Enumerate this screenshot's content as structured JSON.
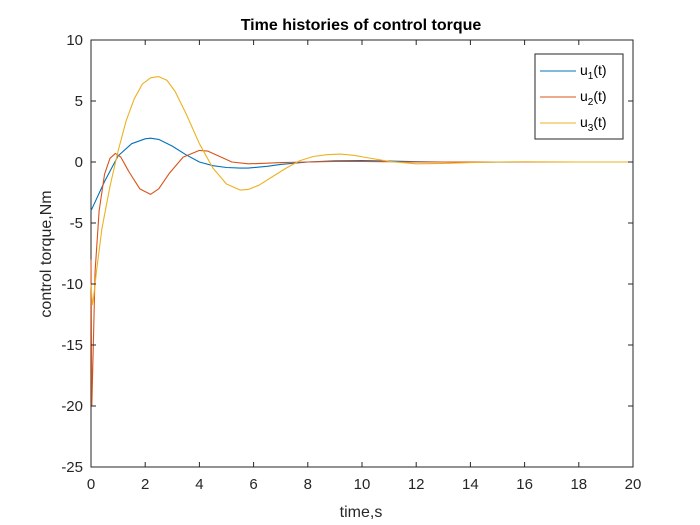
{
  "chart_data": {
    "type": "line",
    "title": "Time histories of control torque",
    "xlabel": "time,s",
    "ylabel": "control torque,Nm",
    "xlim": [
      0,
      20
    ],
    "ylim": [
      -25,
      10
    ],
    "xticks": [
      0,
      2,
      4,
      6,
      8,
      10,
      12,
      14,
      16,
      18,
      20
    ],
    "yticks": [
      -25,
      -20,
      -15,
      -10,
      -5,
      0,
      5,
      10
    ],
    "grid": false,
    "legend_position": "top-right",
    "series": [
      {
        "name": "u_1(t)",
        "label_base": "u",
        "label_sub": "1",
        "label_suffix": "(t)",
        "color": "#0072BD",
        "x": [
          0,
          0.5,
          1.0,
          1.5,
          2.0,
          2.2,
          2.5,
          3.0,
          3.5,
          4.0,
          4.5,
          5.0,
          5.5,
          5.8,
          6.5,
          7.0,
          7.5,
          8.0,
          9.0,
          10.0,
          11.0,
          12.0,
          13.0,
          14.0,
          15.0,
          16.0,
          18.0,
          20.0
        ],
        "y": [
          -4.0,
          -1.6,
          0.5,
          1.5,
          1.9,
          1.95,
          1.85,
          1.3,
          0.6,
          0.0,
          -0.3,
          -0.45,
          -0.5,
          -0.5,
          -0.35,
          -0.2,
          -0.1,
          0.0,
          0.1,
          0.12,
          0.08,
          0.03,
          0.0,
          -0.02,
          -0.01,
          0.0,
          0.0,
          0.0
        ]
      },
      {
        "name": "u_2(t)",
        "label_base": "u",
        "label_sub": "2",
        "label_suffix": "(t)",
        "color": "#D95319",
        "x": [
          0,
          0.03,
          0.08,
          0.15,
          0.3,
          0.5,
          0.7,
          0.9,
          1.1,
          1.4,
          1.8,
          2.2,
          2.5,
          2.9,
          3.4,
          4.0,
          4.3,
          4.7,
          5.2,
          5.8,
          6.5,
          7.0,
          8.0,
          9.0,
          10.0,
          11.0,
          12.0,
          14.0,
          16.0,
          20.0
        ],
        "y": [
          -8.0,
          -20.0,
          -15.5,
          -9.0,
          -4.0,
          -1.0,
          0.3,
          0.7,
          0.4,
          -0.8,
          -2.2,
          -2.65,
          -2.2,
          -0.9,
          0.4,
          0.95,
          0.9,
          0.5,
          0.0,
          -0.15,
          -0.1,
          -0.05,
          0.0,
          0.05,
          0.05,
          0.02,
          0.0,
          0.0,
          0.0,
          0.0
        ]
      },
      {
        "name": "u_3(t)",
        "label_base": "u",
        "label_sub": "3",
        "label_suffix": "(t)",
        "color": "#EDB120",
        "x": [
          0,
          0.05,
          0.1,
          0.2,
          0.4,
          0.7,
          1.0,
          1.3,
          1.6,
          1.9,
          2.2,
          2.5,
          2.8,
          3.1,
          3.5,
          4.0,
          4.5,
          5.0,
          5.5,
          5.8,
          6.2,
          6.7,
          7.2,
          7.7,
          8.2,
          8.7,
          9.2,
          9.7,
          10.2,
          11.0,
          12.0,
          13.0,
          14.0,
          15.0,
          16.0,
          18.0,
          20.0
        ],
        "y": [
          -10.0,
          -11.7,
          -11.0,
          -9.0,
          -5.5,
          -2.0,
          0.9,
          3.4,
          5.2,
          6.4,
          6.9,
          7.0,
          6.7,
          5.8,
          4.0,
          1.5,
          -0.5,
          -1.8,
          -2.3,
          -2.25,
          -1.9,
          -1.2,
          -0.5,
          0.1,
          0.45,
          0.6,
          0.65,
          0.55,
          0.35,
          0.05,
          -0.15,
          -0.12,
          -0.05,
          0.0,
          0.02,
          0.0,
          0.0
        ]
      }
    ]
  }
}
